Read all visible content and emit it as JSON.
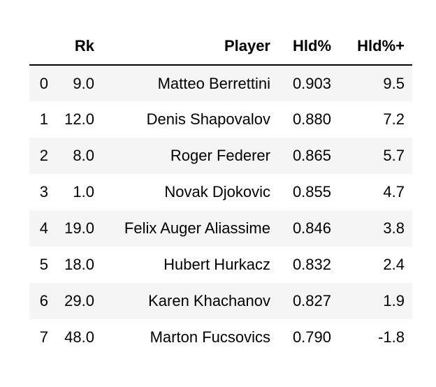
{
  "table": {
    "columns": [
      "",
      "Rk",
      "Player",
      "Hld%",
      "Hld%+"
    ],
    "rows": [
      {
        "index": "0",
        "rk": "9.0",
        "player": "Matteo Berrettini",
        "hld": "0.903",
        "hld_plus": "9.5"
      },
      {
        "index": "1",
        "rk": "12.0",
        "player": "Denis Shapovalov",
        "hld": "0.880",
        "hld_plus": "7.2"
      },
      {
        "index": "2",
        "rk": "8.0",
        "player": "Roger Federer",
        "hld": "0.865",
        "hld_plus": "5.7"
      },
      {
        "index": "3",
        "rk": "1.0",
        "player": "Novak Djokovic",
        "hld": "0.855",
        "hld_plus": "4.7"
      },
      {
        "index": "4",
        "rk": "19.0",
        "player": "Felix Auger Aliassime",
        "hld": "0.846",
        "hld_plus": "3.8"
      },
      {
        "index": "5",
        "rk": "18.0",
        "player": "Hubert Hurkacz",
        "hld": "0.832",
        "hld_plus": "2.4"
      },
      {
        "index": "6",
        "rk": "29.0",
        "player": "Karen Khachanov",
        "hld": "0.827",
        "hld_plus": "1.9"
      },
      {
        "index": "7",
        "rk": "48.0",
        "player": "Marton Fucsovics",
        "hld": "0.790",
        "hld_plus": "-1.8"
      }
    ]
  },
  "colors": {
    "stripe": "#f5f5f5",
    "header_rule": "#000000"
  }
}
